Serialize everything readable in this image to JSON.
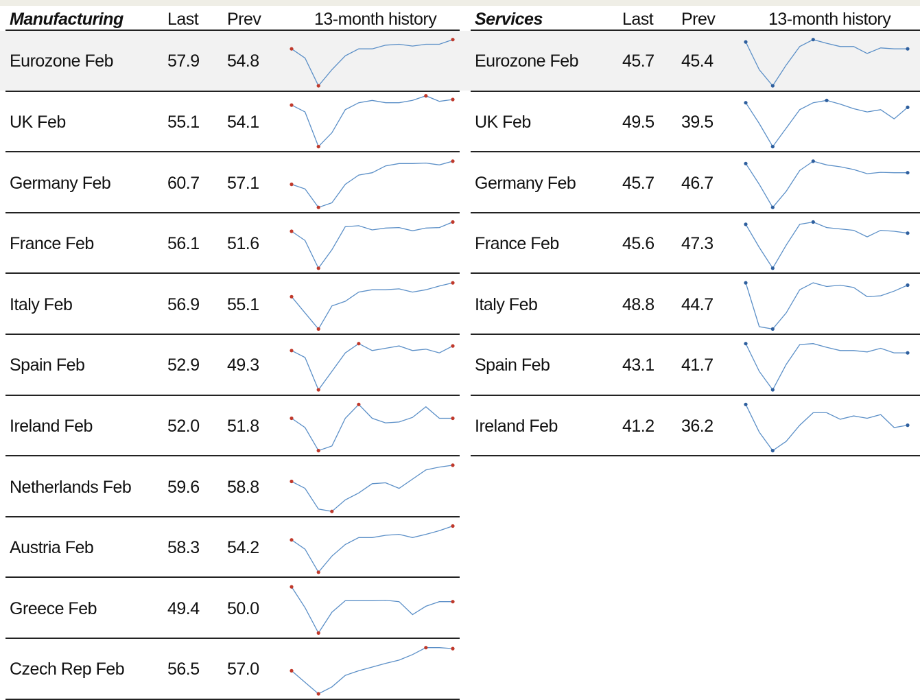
{
  "colors": {
    "background": "#ffffff",
    "highlight_row": "#f2f2f2",
    "rule": "#222222",
    "spark_line": "#5b8fc7",
    "manufacturing_marker": "#c0392b",
    "services_marker": "#2e5f9e"
  },
  "headers": {
    "manufacturing": {
      "title": "Manufacturing",
      "last": "Last",
      "prev": "Prev",
      "history": "13-month history"
    },
    "services": {
      "title": "Services",
      "last": "Last",
      "prev": "Prev",
      "history": "13-month history"
    }
  },
  "manufacturing": [
    {
      "label": "Eurozone Feb",
      "last": "57.9",
      "prev": "54.8"
    },
    {
      "label": "UK Feb",
      "last": "55.1",
      "prev": "54.1"
    },
    {
      "label": "Germany Feb",
      "last": "60.7",
      "prev": "57.1"
    },
    {
      "label": "France Feb",
      "last": "56.1",
      "prev": "51.6"
    },
    {
      "label": "Italy Feb",
      "last": "56.9",
      "prev": "55.1"
    },
    {
      "label": "Spain Feb",
      "last": "52.9",
      "prev": "49.3"
    },
    {
      "label": "Ireland Feb",
      "last": "52.0",
      "prev": "51.8"
    },
    {
      "label": "Netherlands Feb",
      "last": "59.6",
      "prev": "58.8"
    },
    {
      "label": "Austria Feb",
      "last": "58.3",
      "prev": "54.2"
    },
    {
      "label": "Greece Feb",
      "last": "49.4",
      "prev": "50.0"
    },
    {
      "label": "Czech Rep Feb",
      "last": "56.5",
      "prev": "57.0"
    }
  ],
  "services": [
    {
      "label": "Eurozone Feb",
      "last": "45.7",
      "prev": "45.4"
    },
    {
      "label": "UK Feb",
      "last": "49.5",
      "prev": "39.5"
    },
    {
      "label": "Germany Feb",
      "last": "45.7",
      "prev": "46.7"
    },
    {
      "label": "France Feb",
      "last": "45.6",
      "prev": "47.3"
    },
    {
      "label": "Italy Feb",
      "last": "48.8",
      "prev": "44.7"
    },
    {
      "label": "Spain Feb",
      "last": "43.1",
      "prev": "41.7"
    },
    {
      "label": "Ireland Feb",
      "last": "41.2",
      "prev": "36.2"
    }
  ],
  "chart_data": {
    "type": "line",
    "title": "13-month history",
    "months": 13,
    "manufacturing_series": [
      {
        "name": "Eurozone",
        "values": [
          0.8,
          0.6,
          0.0,
          0.35,
          0.65,
          0.8,
          0.8,
          0.88,
          0.9,
          0.86,
          0.9,
          0.9,
          1.0
        ]
      },
      {
        "name": "UK",
        "values": [
          0.9,
          0.75,
          0.0,
          0.3,
          0.8,
          0.95,
          1.0,
          0.95,
          0.95,
          1.0,
          1.1,
          0.98,
          1.02
        ]
      },
      {
        "name": "Germany",
        "values": [
          0.5,
          0.4,
          0.0,
          0.1,
          0.5,
          0.7,
          0.75,
          0.9,
          0.95,
          0.95,
          0.96,
          0.92,
          1.0
        ]
      },
      {
        "name": "France",
        "values": [
          0.8,
          0.6,
          0.0,
          0.4,
          0.9,
          0.92,
          0.83,
          0.87,
          0.88,
          0.81,
          0.87,
          0.88,
          1.0
        ]
      },
      {
        "name": "Italy",
        "values": [
          0.7,
          0.35,
          0.0,
          0.5,
          0.6,
          0.8,
          0.85,
          0.85,
          0.87,
          0.8,
          0.85,
          0.93,
          1.0
        ]
      },
      {
        "name": "Spain",
        "values": [
          0.85,
          0.7,
          0.0,
          0.4,
          0.8,
          1.0,
          0.85,
          0.9,
          0.95,
          0.85,
          0.88,
          0.8,
          0.95
        ]
      },
      {
        "name": "Ireland",
        "values": [
          0.7,
          0.5,
          0.0,
          0.1,
          0.7,
          1.0,
          0.7,
          0.6,
          0.62,
          0.72,
          0.95,
          0.7,
          0.7
        ]
      },
      {
        "name": "Netherlands",
        "values": [
          0.65,
          0.5,
          0.05,
          0.0,
          0.25,
          0.4,
          0.6,
          0.62,
          0.5,
          0.7,
          0.9,
          0.96,
          1.0
        ]
      },
      {
        "name": "Austria",
        "values": [
          0.7,
          0.5,
          0.0,
          0.35,
          0.6,
          0.75,
          0.75,
          0.8,
          0.82,
          0.75,
          0.82,
          0.9,
          1.0
        ]
      },
      {
        "name": "Greece",
        "values": [
          1.0,
          0.55,
          0.0,
          0.45,
          0.7,
          0.7,
          0.7,
          0.71,
          0.68,
          0.4,
          0.58,
          0.68,
          0.68
        ]
      },
      {
        "name": "Czech Rep",
        "values": [
          0.5,
          0.25,
          0.0,
          0.15,
          0.4,
          0.5,
          0.58,
          0.66,
          0.73,
          0.85,
          1.0,
          1.0,
          0.98
        ]
      }
    ],
    "services_series": [
      {
        "name": "Eurozone",
        "values": [
          0.95,
          0.35,
          0.0,
          0.45,
          0.85,
          1.0,
          0.92,
          0.85,
          0.85,
          0.7,
          0.82,
          0.8,
          0.8
        ]
      },
      {
        "name": "UK",
        "values": [
          0.95,
          0.5,
          0.0,
          0.4,
          0.8,
          0.95,
          1.0,
          0.92,
          0.82,
          0.75,
          0.8,
          0.6,
          0.85
        ]
      },
      {
        "name": "Germany",
        "values": [
          0.95,
          0.5,
          0.0,
          0.35,
          0.8,
          1.0,
          0.92,
          0.88,
          0.82,
          0.73,
          0.76,
          0.75,
          0.75
        ]
      },
      {
        "name": "France",
        "values": [
          0.95,
          0.45,
          0.0,
          0.5,
          0.95,
          1.0,
          0.88,
          0.85,
          0.82,
          0.68,
          0.82,
          0.8,
          0.76
        ]
      },
      {
        "name": "Italy",
        "values": [
          1.0,
          0.05,
          0.0,
          0.35,
          0.85,
          1.0,
          0.92,
          0.95,
          0.9,
          0.7,
          0.72,
          0.82,
          0.95
        ]
      },
      {
        "name": "Spain",
        "values": [
          1.0,
          0.4,
          0.0,
          0.55,
          0.98,
          1.0,
          0.92,
          0.85,
          0.85,
          0.82,
          0.9,
          0.8,
          0.8
        ]
      },
      {
        "name": "Ireland",
        "values": [
          1.0,
          0.4,
          0.0,
          0.2,
          0.55,
          0.82,
          0.82,
          0.68,
          0.75,
          0.7,
          0.78,
          0.5,
          0.55
        ]
      }
    ]
  }
}
